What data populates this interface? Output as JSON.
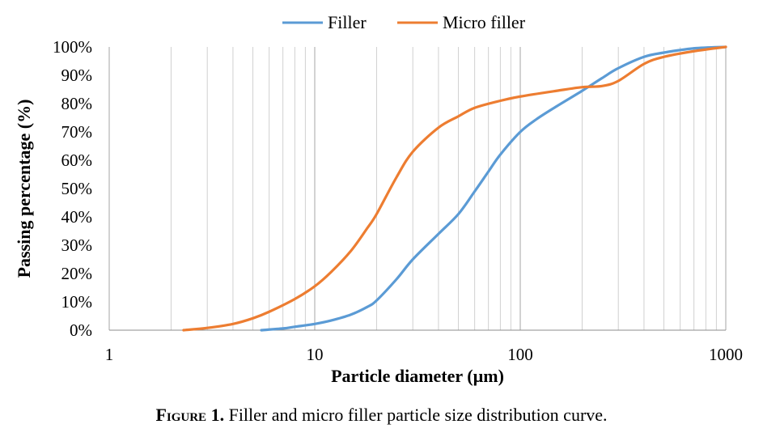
{
  "chart_data": {
    "type": "line",
    "title": "",
    "xlabel": "Particle diameter (µm)",
    "ylabel": "Passing percentage (%)",
    "x_scale": "log",
    "xlim": [
      1,
      1000
    ],
    "ylim": [
      0,
      100
    ],
    "x_ticks": [
      "1",
      "10",
      "100",
      "1000"
    ],
    "y_ticks": [
      "0%",
      "10%",
      "20%",
      "30%",
      "40%",
      "50%",
      "60%",
      "70%",
      "80%",
      "90%",
      "100%"
    ],
    "grid": "vertical minor and major lines",
    "legend": "top-center",
    "series": [
      {
        "name": "Filler",
        "color": "#5b9bd5",
        "x": [
          5.5,
          7,
          8,
          10,
          12,
          15,
          18,
          20,
          25,
          30,
          40,
          50,
          60,
          70,
          80,
          100,
          120,
          150,
          200,
          250,
          300,
          400,
          500,
          700,
          1000
        ],
        "y": [
          0,
          0.6,
          1.2,
          2.2,
          3.4,
          5.5,
          8.2,
          10.5,
          18,
          25,
          34,
          41,
          49,
          56,
          62,
          70,
          74.5,
          79,
          84.5,
          89,
          92.5,
          96.5,
          98,
          99.5,
          100
        ]
      },
      {
        "name": "Micro filler",
        "color": "#ed7d31",
        "x": [
          2.3,
          3,
          4,
          5,
          6,
          8,
          10,
          12,
          15,
          18,
          20,
          25,
          30,
          40,
          50,
          60,
          80,
          100,
          150,
          200,
          250,
          300,
          400,
          500,
          700,
          1000
        ],
        "y": [
          0,
          0.8,
          2.2,
          4.2,
          6.5,
          11,
          15.5,
          20.5,
          28,
          36,
          41,
          54,
          63,
          71.5,
          75.5,
          78.5,
          81,
          82.5,
          84.5,
          85.8,
          86.2,
          88,
          94,
          96.5,
          98.5,
          100
        ]
      }
    ]
  },
  "figure": {
    "label": "Figure 1.",
    "text": " Filler and micro filler particle size distribution curve."
  }
}
